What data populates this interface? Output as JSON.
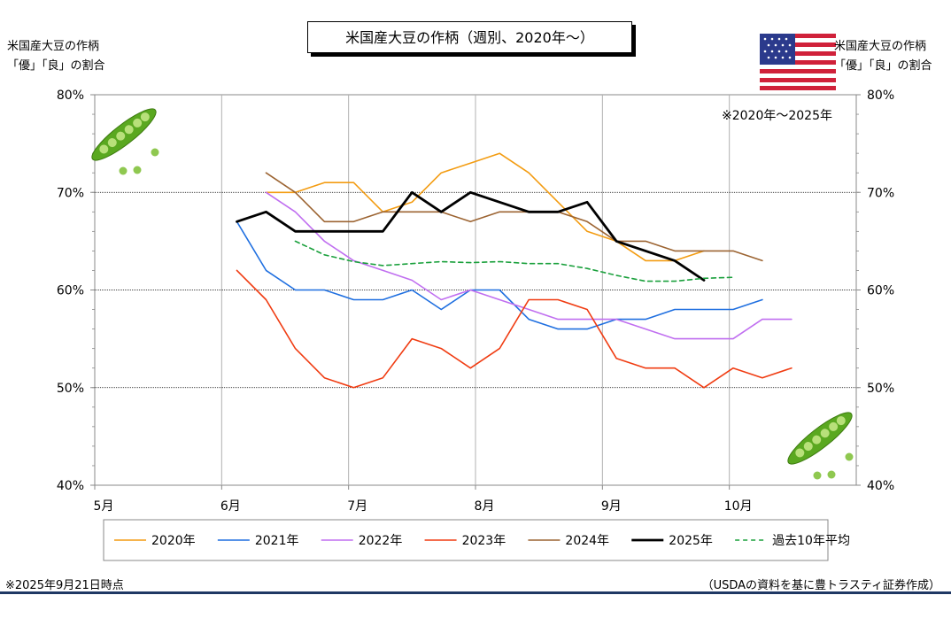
{
  "chart_data": {
    "type": "line",
    "title": "米国産大豆の作柄（週別、2020年～）",
    "ylabel_left": [
      "米国産大豆の作柄",
      "「優」「良」の割合"
    ],
    "ylabel_right": [
      "米国産大豆の作柄",
      "「優」「良」の割合"
    ],
    "note_top": "※2020年～2025年",
    "footnote_left": "※2025年9月21日時点",
    "footnote_right": "（USDAの資料を基に豊トラスティ証券作成）",
    "x_axis": {
      "min": 5.0,
      "max": 11.0,
      "ticks": [
        {
          "v": 5,
          "label": "5月"
        },
        {
          "v": 6,
          "label": "6月"
        },
        {
          "v": 7,
          "label": "7月"
        },
        {
          "v": 8,
          "label": "8月"
        },
        {
          "v": 9,
          "label": "9月"
        },
        {
          "v": 10,
          "label": "10月"
        }
      ]
    },
    "y_axis": {
      "min": 40,
      "max": 80,
      "ticks": [
        {
          "v": 40,
          "label": "40%"
        },
        {
          "v": 50,
          "label": "50%"
        },
        {
          "v": 60,
          "label": "60%"
        },
        {
          "v": 70,
          "label": "70%"
        },
        {
          "v": 80,
          "label": "80%"
        }
      ]
    },
    "grid": true,
    "legend_position": "bottom",
    "series": [
      {
        "name": "2020年",
        "color": "#f39c12",
        "width": 1.6,
        "dash": false,
        "x": [
          6.35,
          6.58,
          6.81,
          7.04,
          7.27,
          7.5,
          7.73,
          7.96,
          8.19,
          8.42,
          8.65,
          8.88,
          9.11,
          9.34,
          9.57,
          9.8
        ],
        "y": [
          70,
          70,
          71,
          71,
          68,
          69,
          72,
          73,
          74,
          72,
          69,
          66,
          65,
          63,
          63,
          64
        ]
      },
      {
        "name": "2021年",
        "color": "#1f6fe0",
        "width": 1.6,
        "dash": false,
        "x": [
          6.12,
          6.35,
          6.58,
          6.81,
          7.04,
          7.27,
          7.5,
          7.73,
          7.96,
          8.19,
          8.42,
          8.65,
          8.88,
          9.11,
          9.34,
          9.57,
          9.8,
          10.03,
          10.26
        ],
        "y": [
          67,
          62,
          60,
          60,
          59,
          59,
          60,
          58,
          60,
          60,
          57,
          56,
          56,
          57,
          57,
          58,
          58,
          58,
          59
        ]
      },
      {
        "name": "2022年",
        "color": "#c06ff0",
        "width": 1.6,
        "dash": false,
        "x": [
          6.35,
          6.58,
          6.81,
          7.04,
          7.27,
          7.5,
          7.73,
          7.96,
          8.19,
          8.42,
          8.65,
          8.88,
          9.11,
          9.34,
          9.57,
          9.8,
          10.03,
          10.26,
          10.49
        ],
        "y": [
          70,
          68,
          65,
          63,
          62,
          61,
          59,
          60,
          59,
          58,
          57,
          57,
          57,
          56,
          55,
          55,
          55,
          57,
          57
        ]
      },
      {
        "name": "2023年",
        "color": "#f03c12",
        "width": 1.6,
        "dash": false,
        "x": [
          6.12,
          6.35,
          6.58,
          6.81,
          7.04,
          7.27,
          7.5,
          7.73,
          7.96,
          8.19,
          8.42,
          8.65,
          8.88,
          9.11,
          9.34,
          9.57,
          9.8,
          10.03,
          10.26,
          10.49
        ],
        "y": [
          62,
          59,
          54,
          51,
          50,
          51,
          55,
          54,
          52,
          54,
          59,
          59,
          58,
          53,
          52,
          52,
          50,
          52,
          51,
          52
        ]
      },
      {
        "name": "2024年",
        "color": "#9c6432",
        "width": 1.6,
        "dash": false,
        "x": [
          6.35,
          6.58,
          6.81,
          7.04,
          7.27,
          7.5,
          7.73,
          7.96,
          8.19,
          8.42,
          8.65,
          8.88,
          9.11,
          9.34,
          9.57,
          9.8,
          10.03,
          10.26
        ],
        "y": [
          72,
          70,
          67,
          67,
          68,
          68,
          68,
          67,
          68,
          68,
          68,
          67,
          65,
          65,
          64,
          64,
          64,
          63
        ]
      },
      {
        "name": "2025年",
        "color": "#000000",
        "width": 2.8,
        "dash": false,
        "x": [
          6.12,
          6.35,
          6.58,
          6.81,
          7.04,
          7.27,
          7.5,
          7.73,
          7.96,
          8.19,
          8.42,
          8.65,
          8.88,
          9.11,
          9.34,
          9.57,
          9.8
        ],
        "y": [
          67,
          68,
          66,
          66,
          66,
          66,
          70,
          68,
          70,
          69,
          68,
          68,
          69,
          65,
          64,
          63,
          61
        ]
      },
      {
        "name": "過去10年平均",
        "color": "#1aa03c",
        "width": 1.6,
        "dash": true,
        "x": [
          6.58,
          6.81,
          7.04,
          7.27,
          7.5,
          7.73,
          7.96,
          8.19,
          8.42,
          8.65,
          8.88,
          9.11,
          9.34,
          9.57,
          9.8,
          10.03
        ],
        "y": [
          65,
          63.6,
          62.9,
          62.5,
          62.7,
          62.9,
          62.8,
          62.9,
          62.7,
          62.7,
          62.2,
          61.5,
          60.9,
          60.9,
          61.2,
          61.3
        ]
      }
    ]
  }
}
